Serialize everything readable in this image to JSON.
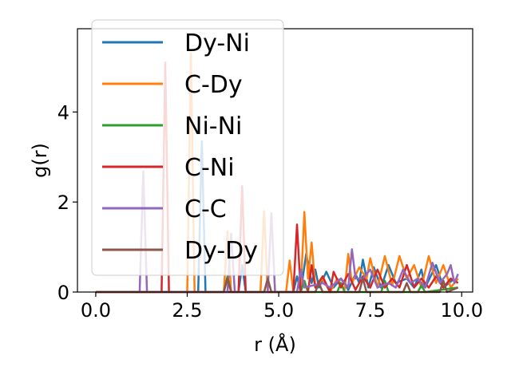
{
  "chart_data": {
    "type": "line",
    "title": "",
    "xlabel": "r (Å)",
    "ylabel": "g(r)",
    "xlim": [
      -0.5,
      10.3
    ],
    "ylim": [
      0,
      5.85
    ],
    "xticks": [
      0.0,
      2.5,
      5.0,
      7.5,
      10.0
    ],
    "xtick_labels": [
      "0.0",
      "2.5",
      "5.0",
      "7.5",
      "10.0"
    ],
    "yticks": [
      0,
      2,
      4
    ],
    "ytick_labels": [
      "0",
      "2",
      "4"
    ],
    "grid": false,
    "legend_position": "upper-left",
    "series": [
      {
        "name": "Dy-Ni",
        "color": "#1f77b4",
        "points": [
          [
            0,
            0
          ],
          [
            2.8,
            0
          ],
          [
            2.9,
            3.35
          ],
          [
            3.0,
            0
          ],
          [
            3.9,
            0
          ],
          [
            4.0,
            0.6
          ],
          [
            4.1,
            0
          ],
          [
            5.4,
            0
          ],
          [
            5.5,
            0.35
          ],
          [
            5.6,
            0
          ],
          [
            5.75,
            0.85
          ],
          [
            5.9,
            0.2
          ],
          [
            6.0,
            0.5
          ],
          [
            6.1,
            0.1
          ],
          [
            6.3,
            0.45
          ],
          [
            6.5,
            0.1
          ],
          [
            6.7,
            0.3
          ],
          [
            6.9,
            0.05
          ],
          [
            7.1,
            0.4
          ],
          [
            7.2,
            0.2
          ],
          [
            7.3,
            0.72
          ],
          [
            7.45,
            0.1
          ],
          [
            7.6,
            0.55
          ],
          [
            7.8,
            0.1
          ],
          [
            8.0,
            0.6
          ],
          [
            8.2,
            0.2
          ],
          [
            8.5,
            0.3
          ],
          [
            8.7,
            0.1
          ],
          [
            8.9,
            0.5
          ],
          [
            9.0,
            0.1
          ],
          [
            9.3,
            0.6
          ],
          [
            9.5,
            0.1
          ],
          [
            9.8,
            0.3
          ]
        ]
      },
      {
        "name": "C-Dy",
        "color": "#ff7f0e",
        "points": [
          [
            0,
            0
          ],
          [
            2.5,
            0
          ],
          [
            2.6,
            5.3
          ],
          [
            2.7,
            0
          ],
          [
            3.5,
            0
          ],
          [
            3.6,
            1.35
          ],
          [
            3.7,
            0
          ],
          [
            4.5,
            0
          ],
          [
            4.6,
            1.8
          ],
          [
            4.7,
            0
          ],
          [
            5.2,
            0
          ],
          [
            5.3,
            0.7
          ],
          [
            5.4,
            0
          ],
          [
            5.6,
            0
          ],
          [
            5.7,
            1.78
          ],
          [
            5.8,
            0.3
          ],
          [
            5.9,
            1.1
          ],
          [
            6.0,
            0.1
          ],
          [
            6.2,
            0.3
          ],
          [
            6.4,
            0
          ],
          [
            6.6,
            0.3
          ],
          [
            6.8,
            0.05
          ],
          [
            6.9,
            0.85
          ],
          [
            7.0,
            0.2
          ],
          [
            7.2,
            0.55
          ],
          [
            7.4,
            0.3
          ],
          [
            7.5,
            0.75
          ],
          [
            7.7,
            0.1
          ],
          [
            7.9,
            0.8
          ],
          [
            8.1,
            0.15
          ],
          [
            8.3,
            0.8
          ],
          [
            8.5,
            0.3
          ],
          [
            8.7,
            0.6
          ],
          [
            8.9,
            0.1
          ],
          [
            9.1,
            0.8
          ],
          [
            9.3,
            0.2
          ],
          [
            9.5,
            0.6
          ],
          [
            9.7,
            0.1
          ],
          [
            9.9,
            0.3
          ]
        ]
      },
      {
        "name": "Ni-Ni",
        "color": "#2ca02c",
        "points": [
          [
            0,
            0
          ],
          [
            3.5,
            0
          ],
          [
            3.6,
            0.35
          ],
          [
            3.7,
            0
          ],
          [
            5.6,
            0
          ],
          [
            5.7,
            0.25
          ],
          [
            5.8,
            0
          ],
          [
            6.6,
            0
          ],
          [
            6.7,
            0.2
          ],
          [
            6.8,
            0
          ],
          [
            7.8,
            0
          ],
          [
            7.9,
            0.25
          ],
          [
            8.0,
            0
          ],
          [
            8.8,
            0
          ],
          [
            8.9,
            0.15
          ],
          [
            9.0,
            0
          ],
          [
            9.9,
            0.1
          ]
        ]
      },
      {
        "name": "C-Ni",
        "color": "#d62728",
        "points": [
          [
            0,
            0
          ],
          [
            1.8,
            0
          ],
          [
            1.9,
            5.1
          ],
          [
            2.0,
            0
          ],
          [
            3.9,
            0
          ],
          [
            4.0,
            2.35
          ],
          [
            4.1,
            0
          ],
          [
            5.4,
            0
          ],
          [
            5.5,
            1.5
          ],
          [
            5.6,
            0
          ],
          [
            5.8,
            0
          ],
          [
            5.9,
            0.6
          ],
          [
            6.0,
            0.1
          ],
          [
            6.2,
            0.35
          ],
          [
            6.4,
            0
          ],
          [
            6.5,
            0.45
          ],
          [
            6.7,
            0.1
          ],
          [
            6.9,
            0.4
          ],
          [
            7.1,
            0.05
          ],
          [
            7.3,
            0.35
          ],
          [
            7.5,
            0.1
          ],
          [
            7.7,
            0.5
          ],
          [
            7.9,
            0.1
          ],
          [
            8.1,
            0.3
          ],
          [
            8.3,
            0.1
          ],
          [
            8.5,
            0.6
          ],
          [
            8.7,
            0.1
          ],
          [
            8.9,
            0.3
          ],
          [
            9.1,
            0.1
          ],
          [
            9.3,
            0.35
          ],
          [
            9.5,
            0.1
          ],
          [
            9.7,
            0.3
          ],
          [
            9.9,
            0.2
          ]
        ]
      },
      {
        "name": "C-C",
        "color": "#9467bd",
        "points": [
          [
            0,
            0
          ],
          [
            1.2,
            0
          ],
          [
            1.3,
            2.68
          ],
          [
            1.4,
            0
          ],
          [
            3.6,
            0
          ],
          [
            3.7,
            1.3
          ],
          [
            3.8,
            0
          ],
          [
            4.7,
            0
          ],
          [
            4.8,
            1.75
          ],
          [
            4.9,
            0
          ],
          [
            5.5,
            0
          ],
          [
            5.6,
            0.5
          ],
          [
            5.7,
            0.1
          ],
          [
            6.2,
            0.2
          ],
          [
            6.4,
            0.1
          ],
          [
            6.7,
            0.3
          ],
          [
            6.9,
            0.1
          ],
          [
            7.0,
            0.95
          ],
          [
            7.1,
            0.3
          ],
          [
            7.3,
            0.3
          ],
          [
            7.5,
            0.5
          ],
          [
            7.7,
            0.1
          ],
          [
            8.0,
            0.2
          ],
          [
            8.2,
            0.1
          ],
          [
            8.4,
            0.5
          ],
          [
            8.6,
            0.2
          ],
          [
            8.8,
            0.3
          ],
          [
            9.0,
            0.1
          ],
          [
            9.2,
            0.65
          ],
          [
            9.4,
            0.2
          ],
          [
            9.6,
            0.4
          ],
          [
            9.7,
            0.6
          ],
          [
            9.8,
            0.2
          ],
          [
            9.9,
            0.4
          ]
        ]
      },
      {
        "name": "Dy-Dy",
        "color": "#8c564b",
        "points": [
          [
            0,
            0
          ],
          [
            3.5,
            0
          ],
          [
            3.6,
            0.3
          ],
          [
            3.7,
            0
          ],
          [
            4.6,
            0
          ],
          [
            4.7,
            0.3
          ],
          [
            4.8,
            0
          ],
          [
            6.0,
            0
          ],
          [
            6.1,
            0.2
          ],
          [
            6.2,
            0
          ],
          [
            7.2,
            0
          ],
          [
            7.3,
            0.3
          ],
          [
            7.4,
            0
          ],
          [
            8.4,
            0
          ],
          [
            8.5,
            0.2
          ],
          [
            8.6,
            0
          ],
          [
            9.4,
            0
          ],
          [
            9.5,
            0.25
          ],
          [
            9.6,
            0
          ],
          [
            9.9,
            0.1
          ]
        ]
      }
    ]
  }
}
